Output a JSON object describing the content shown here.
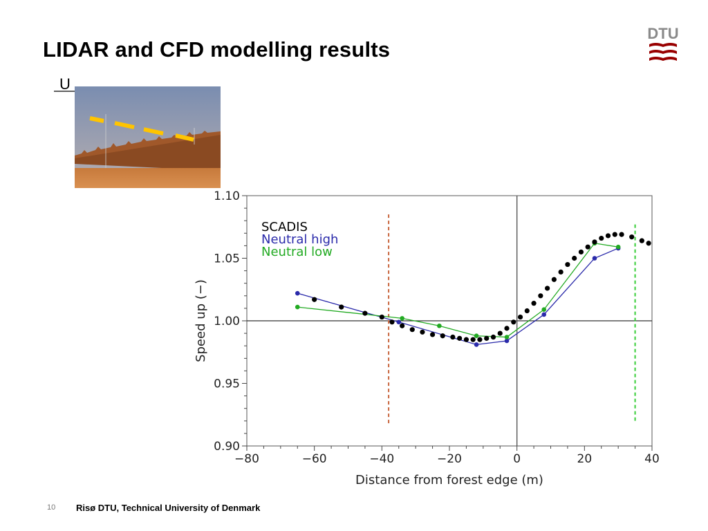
{
  "slide": {
    "title": "LIDAR and CFD modelling results",
    "photo_label": "U",
    "logo_text": "DTU",
    "footer_page": "10",
    "footer_text": "Risø DTU, Technical University of Denmark"
  },
  "colors": {
    "dtu_red": "#990000",
    "scadis": "#000000",
    "neutral_high": "#2a2aaa",
    "neutral_low": "#22aa22",
    "forest_line": "#c8643c",
    "green_line": "#33cc33",
    "laser_dash": "#ffc400"
  },
  "chart_data": {
    "type": "line",
    "xlabel": "Distance from forest edge (m)",
    "ylabel": "Speed up (−)",
    "xlim": [
      -80,
      40
    ],
    "ylim": [
      0.9,
      1.1
    ],
    "xticks": [
      "−80",
      "−60",
      "−40",
      "−20",
      "0",
      "20",
      "40"
    ],
    "yticks": [
      "0.90",
      "0.95",
      "1.00",
      "1.05",
      "1.10"
    ],
    "legend_position": "top-left",
    "reference_lines": {
      "horizontal_y": 1.0,
      "vertical_x": 0,
      "forest_dashed_x": -38,
      "green_dashed_x": 35
    },
    "series": [
      {
        "name": "SCADIS",
        "style": "dots",
        "x": [
          -60,
          -52,
          -45,
          -40,
          -37,
          -34,
          -31,
          -28,
          -25,
          -22,
          -19,
          -17,
          -15,
          -13,
          -11,
          -9,
          -7,
          -5,
          -3,
          -1,
          1,
          3,
          5,
          7,
          9,
          11,
          13,
          15,
          17,
          19,
          21,
          23,
          25,
          27,
          29,
          31,
          34,
          37,
          39
        ],
        "y": [
          1.017,
          1.011,
          1.006,
          1.003,
          0.999,
          0.996,
          0.993,
          0.991,
          0.989,
          0.988,
          0.987,
          0.986,
          0.985,
          0.985,
          0.985,
          0.986,
          0.987,
          0.99,
          0.994,
          0.999,
          1.003,
          1.008,
          1.014,
          1.02,
          1.026,
          1.033,
          1.039,
          1.045,
          1.05,
          1.055,
          1.059,
          1.063,
          1.066,
          1.068,
          1.069,
          1.069,
          1.067,
          1.064,
          1.062
        ]
      },
      {
        "name": "Neutral high",
        "style": "line-markers",
        "x": [
          -65,
          -35,
          -12,
          -3,
          8,
          23,
          30
        ],
        "y": [
          1.022,
          0.999,
          0.981,
          0.984,
          1.005,
          1.05,
          1.058
        ]
      },
      {
        "name": "Neutral low",
        "style": "line-markers",
        "x": [
          -65,
          -34,
          -23,
          -12,
          -3,
          8,
          23,
          30
        ],
        "y": [
          1.011,
          1.002,
          0.996,
          0.988,
          0.987,
          1.009,
          1.062,
          1.059
        ]
      }
    ]
  }
}
